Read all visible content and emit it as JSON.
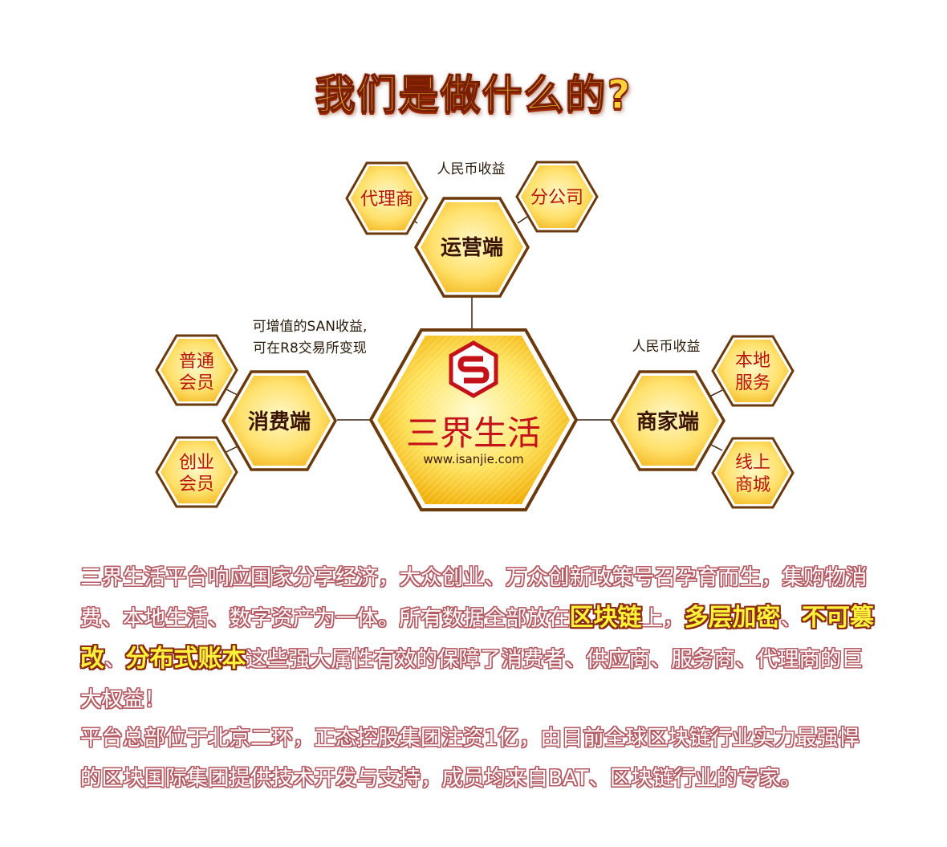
{
  "title": "我们是做什么的?",
  "diagram": {
    "center": {
      "brand": "三界生活",
      "url": "www.isanjie.com"
    },
    "operations": {
      "label": "运营端",
      "note": "人民币收益",
      "left": "代理商",
      "right": "分公司"
    },
    "consumer": {
      "label": "消费端",
      "note_line1": "可增值的SAN收益,",
      "note_line2": "可在R8交易所变现",
      "top": "普通会员",
      "bottom": "创业会员"
    },
    "merchant": {
      "label": "商家端",
      "note": "人民币收益",
      "top": "本地服务",
      "bottom": "线上商城"
    }
  },
  "paragraph1": {
    "part1": "三界生活平台响应国家分享经济，大众创业、万众创新政策号召孕育而生，集购物消费、本地生活、数字资产为一体。所有数据全部放在",
    "hl1": "区块链",
    "part2": "上，",
    "hl2": "多层加密",
    "part3": "、",
    "hl3": "不可篡改",
    "part4": "、",
    "hl4": "分布式账本",
    "part5": "这些强大属性有效的保障了消费者、供应商、服务商、代理商的巨大权益！"
  },
  "paragraph2": "平台总部位于北京二环，正态控股集团注资1亿，由目前全球区块链行业实力最强悍的区块国际集团提供技术开发与支持，成员均来自BAT、区块链行业的专家。",
  "colors": {
    "hex_border": "#6b3a0c",
    "hex_fill_light": "#fff6b0",
    "hex_fill_dark": "#f3b200",
    "text_outline": "#b45a63",
    "highlight": "#fff23a",
    "brand_red": "#c4121b"
  }
}
